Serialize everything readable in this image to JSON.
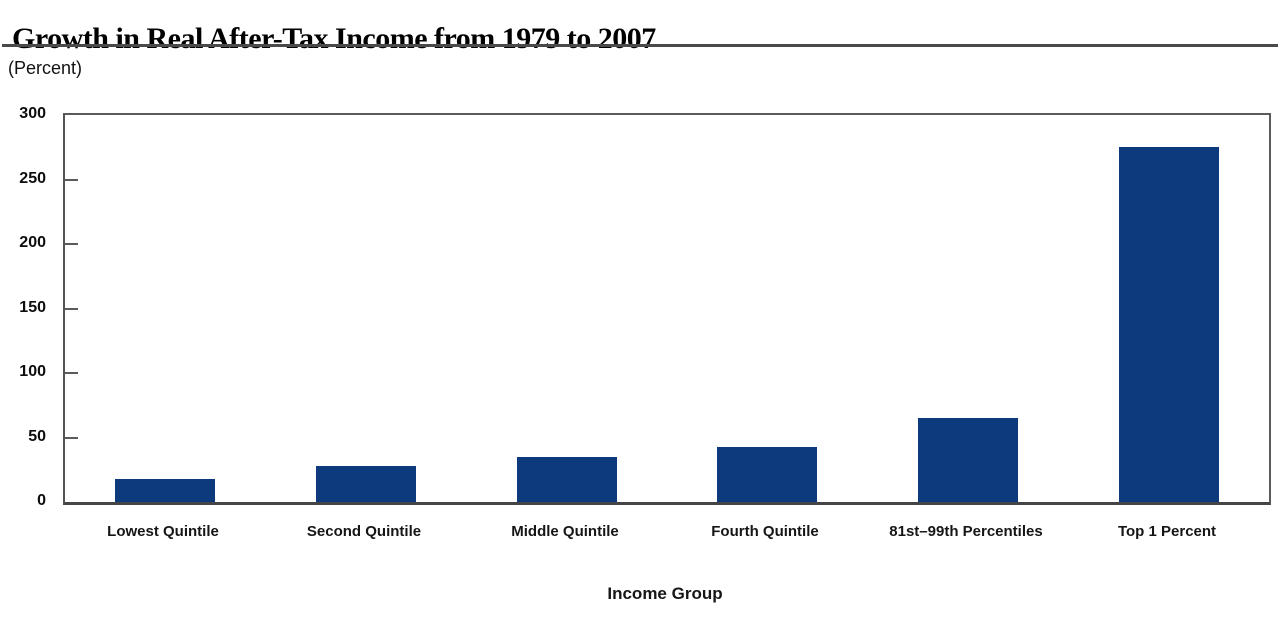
{
  "chart_data": {
    "type": "bar",
    "title": "Growth in Real After-Tax Income from 1979 to 2007",
    "ylabel_note": "(Percent)",
    "xlabel": "Income Group",
    "categories": [
      "Lowest Quintile",
      "Second Quintile",
      "Middle Quintile",
      "Fourth Quintile",
      "81st–99th Percentiles",
      "Top 1 Percent"
    ],
    "values": [
      18,
      28,
      35,
      43,
      65,
      275
    ],
    "ylim": [
      0,
      300
    ],
    "yticks": [
      0,
      50,
      100,
      150,
      200,
      250,
      300
    ],
    "bar_color": "#0c3a7d",
    "frame_color": "#5a5b5d",
    "grid": false,
    "legend": "none"
  }
}
